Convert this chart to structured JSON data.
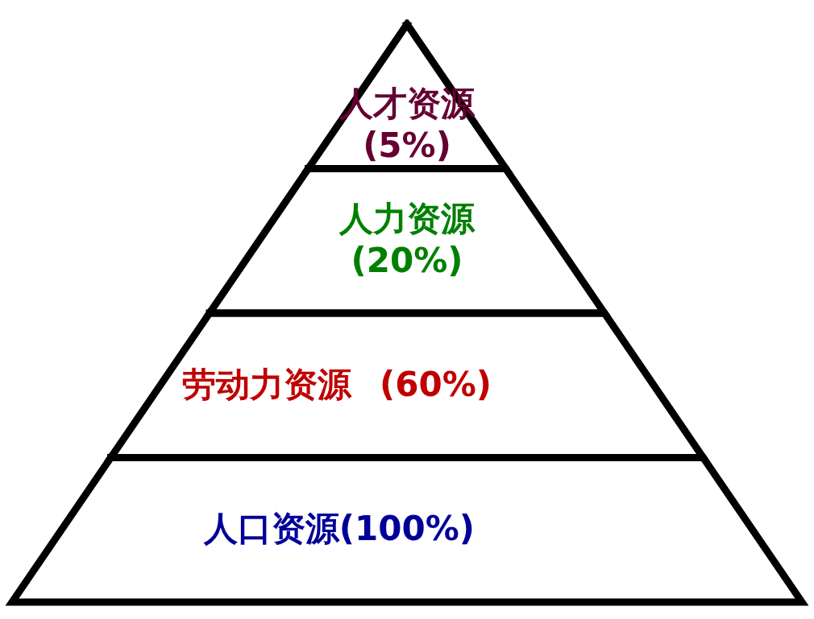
{
  "chart_data": {
    "type": "other",
    "categories": [
      "人才资源",
      "人力资源",
      "劳动力资源",
      "人口资源"
    ],
    "values": [
      5,
      20,
      60,
      100
    ],
    "value_labels": [
      "(5%)",
      "(20%)",
      "(60%)",
      "(100%)"
    ],
    "colors": [
      "#660033",
      "#008000",
      "#c00000",
      "#000099"
    ]
  }
}
